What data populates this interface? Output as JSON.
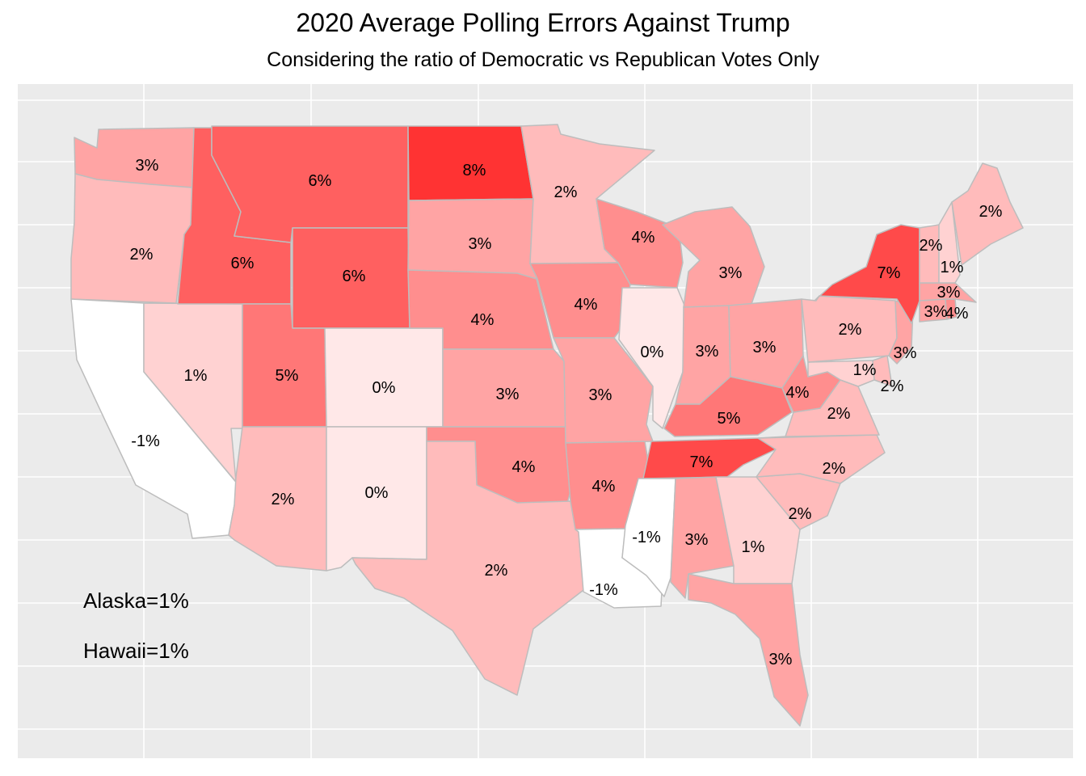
{
  "title": "2020 Average Polling Errors Against Trump",
  "subtitle": "Considering the ratio of Democratic vs Republican Votes Only",
  "colors": {
    "panel": "#ebebeb",
    "grid": "#ffffff",
    "border": "#bdbdbd",
    "low": "#ffffff",
    "high": "#ff3333"
  },
  "notes": [
    "Alaska=1%",
    "Hawaii=1%"
  ],
  "states": [
    {
      "name": "Washington",
      "value": 3,
      "label": "3%"
    },
    {
      "name": "Oregon",
      "value": 2,
      "label": "2%"
    },
    {
      "name": "California",
      "value": -1,
      "label": "-1%"
    },
    {
      "name": "Nevada",
      "value": 1,
      "label": "1%"
    },
    {
      "name": "Idaho",
      "value": 6,
      "label": "6%"
    },
    {
      "name": "Montana",
      "value": 6,
      "label": "6%"
    },
    {
      "name": "Wyoming",
      "value": 6,
      "label": "6%"
    },
    {
      "name": "Utah",
      "value": 5,
      "label": "5%"
    },
    {
      "name": "Arizona",
      "value": 2,
      "label": "2%"
    },
    {
      "name": "Colorado",
      "value": 0,
      "label": "0%"
    },
    {
      "name": "New Mexico",
      "value": 0,
      "label": "0%"
    },
    {
      "name": "North Dakota",
      "value": 8,
      "label": "8%"
    },
    {
      "name": "South Dakota",
      "value": 3,
      "label": "3%"
    },
    {
      "name": "Nebraska",
      "value": 4,
      "label": "4%"
    },
    {
      "name": "Kansas",
      "value": 3,
      "label": "3%"
    },
    {
      "name": "Oklahoma",
      "value": 4,
      "label": "4%"
    },
    {
      "name": "Texas",
      "value": 2,
      "label": "2%"
    },
    {
      "name": "Minnesota",
      "value": 2,
      "label": "2%"
    },
    {
      "name": "Iowa",
      "value": 4,
      "label": "4%"
    },
    {
      "name": "Missouri",
      "value": 3,
      "label": "3%"
    },
    {
      "name": "Arkansas",
      "value": 4,
      "label": "4%"
    },
    {
      "name": "Louisiana",
      "value": -1,
      "label": "-1%"
    },
    {
      "name": "Wisconsin",
      "value": 4,
      "label": "4%"
    },
    {
      "name": "Illinois",
      "value": 0,
      "label": "0%"
    },
    {
      "name": "Michigan",
      "value": 3,
      "label": "3%"
    },
    {
      "name": "Indiana",
      "value": 3,
      "label": "3%"
    },
    {
      "name": "Ohio",
      "value": 3,
      "label": "3%"
    },
    {
      "name": "Kentucky",
      "value": 5,
      "label": "5%"
    },
    {
      "name": "Tennessee",
      "value": 7,
      "label": "7%"
    },
    {
      "name": "Mississippi",
      "value": -1,
      "label": "-1%"
    },
    {
      "name": "Alabama",
      "value": 3,
      "label": "3%"
    },
    {
      "name": "Georgia",
      "value": 1,
      "label": "1%"
    },
    {
      "name": "Florida",
      "value": 3,
      "label": "3%"
    },
    {
      "name": "South Carolina",
      "value": 2,
      "label": "2%"
    },
    {
      "name": "North Carolina",
      "value": 2,
      "label": "2%"
    },
    {
      "name": "Virginia",
      "value": 2,
      "label": "2%"
    },
    {
      "name": "West Virginia",
      "value": 4,
      "label": "4%"
    },
    {
      "name": "Maryland",
      "value": 1,
      "label": "1%"
    },
    {
      "name": "Delaware",
      "value": 2,
      "label": "2%"
    },
    {
      "name": "Pennsylvania",
      "value": 2,
      "label": "2%"
    },
    {
      "name": "New Jersey",
      "value": 3,
      "label": "3%"
    },
    {
      "name": "New York",
      "value": 7,
      "label": "7%"
    },
    {
      "name": "Connecticut",
      "value": 3,
      "label": "3%"
    },
    {
      "name": "Rhode Island",
      "value": 4,
      "label": "4%"
    },
    {
      "name": "Massachusetts",
      "value": 3,
      "label": "3%"
    },
    {
      "name": "Vermont",
      "value": 2,
      "label": "2%"
    },
    {
      "name": "New Hampshire",
      "value": 1,
      "label": "1%"
    },
    {
      "name": "Maine",
      "value": 2,
      "label": "2%"
    }
  ]
}
